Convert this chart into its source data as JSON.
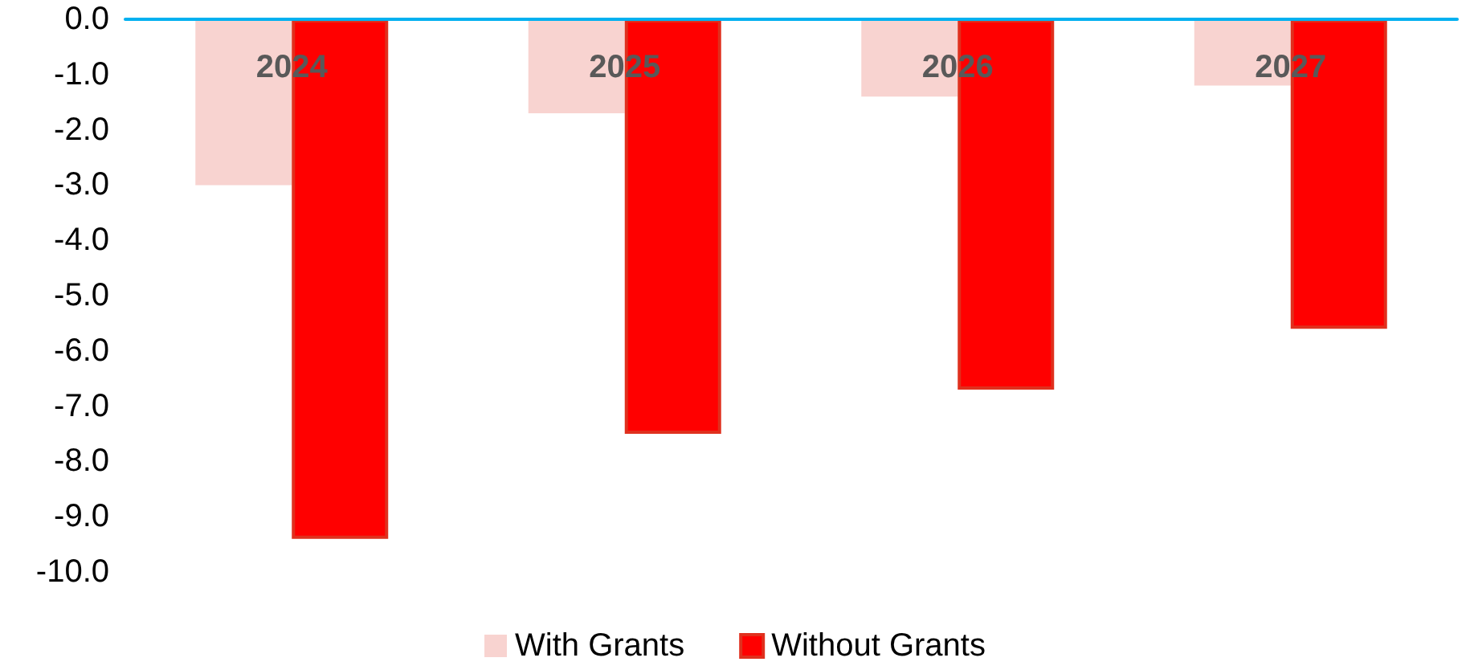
{
  "chart_data": {
    "type": "bar",
    "categories": [
      "2024",
      "2025",
      "2026",
      "2027"
    ],
    "series": [
      {
        "name": "With Grants",
        "color": "#f8d3d0",
        "values": [
          -3.0,
          -1.7,
          -1.4,
          -1.2
        ]
      },
      {
        "name": "Without Grants",
        "color": "#ff0000",
        "values": [
          -9.4,
          -7.5,
          -6.7,
          -5.6
        ]
      }
    ],
    "ylim": [
      -10,
      0
    ],
    "yticks": [
      {
        "value": -10,
        "label": "-10.0"
      },
      {
        "value": -9,
        "label": "-9.0"
      },
      {
        "value": -8,
        "label": "-8.0"
      },
      {
        "value": -7,
        "label": "-7.0"
      },
      {
        "value": -6,
        "label": "-6.0"
      },
      {
        "value": -5,
        "label": "-5.0"
      },
      {
        "value": -4,
        "label": "-4.0"
      },
      {
        "value": -3,
        "label": "-3.0"
      },
      {
        "value": -2,
        "label": "-2.0"
      },
      {
        "value": -1,
        "label": "-1.0"
      },
      {
        "value": 0,
        "label": "0.0"
      }
    ],
    "grid": false,
    "legend": "bottom"
  }
}
